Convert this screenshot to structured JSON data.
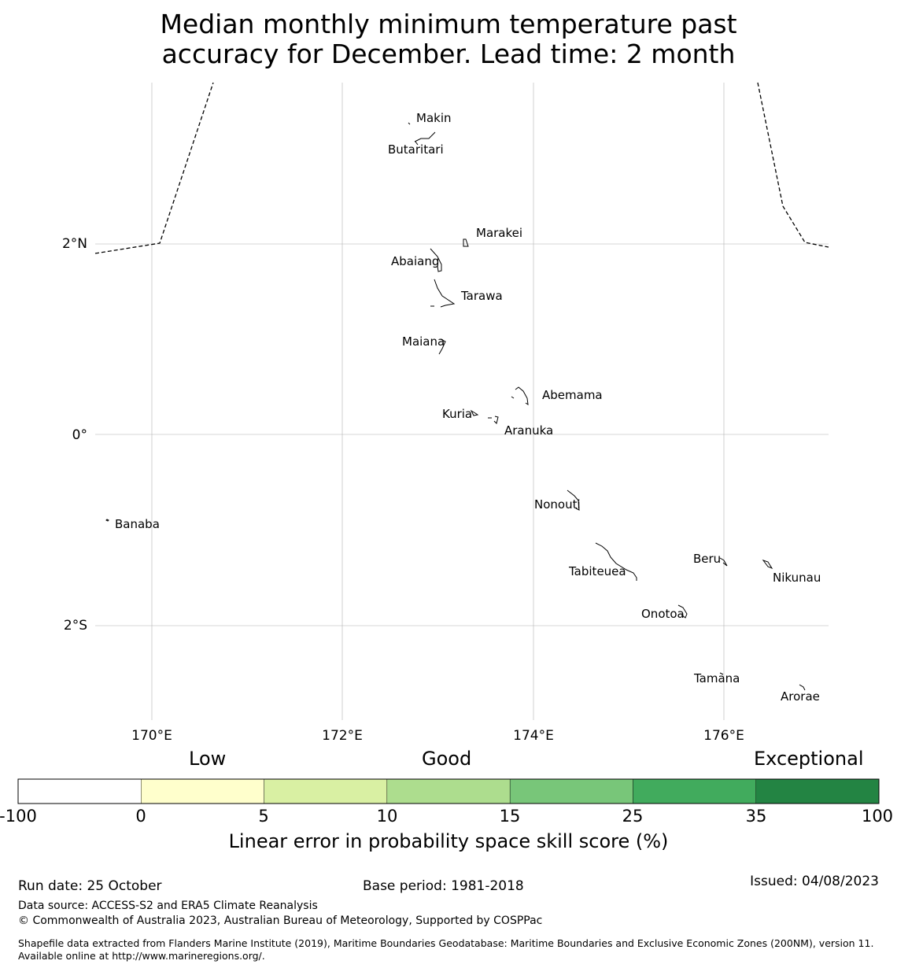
{
  "title": {
    "line1": "Median monthly minimum temperature past",
    "line2": "accuracy for December. Lead time: 2 month"
  },
  "map": {
    "lat_ticks": [
      "2°N",
      "0°",
      "2°S"
    ],
    "lon_ticks": [
      "170°E",
      "172°E",
      "174°E",
      "176°E"
    ],
    "islands": [
      "Makin",
      "Butaritari",
      "Marakei",
      "Abaiang",
      "Tarawa",
      "Maiana",
      "Abemama",
      "Kuria",
      "Aranuka",
      "Nonouti",
      "Banaba",
      "Beru",
      "Tabiteuea",
      "Nikunau",
      "Onotoa",
      "Tamana",
      "Arorae"
    ],
    "colors": {
      "grid": "#b0b0b0",
      "coast": "#000000",
      "boundary": "#000000"
    }
  },
  "legend": {
    "categories": [
      "Low",
      "Good",
      "Exceptional"
    ],
    "ticks": [
      "-100",
      "0",
      "5",
      "10",
      "15",
      "25",
      "35",
      "100"
    ],
    "colors": [
      "#ffffff",
      "#ffffcc",
      "#d9f0a3",
      "#addd8e",
      "#78c679",
      "#41ab5d",
      "#238443"
    ],
    "title": "Linear error in probability space skill score (%)"
  },
  "footer": {
    "run_date": "Run date: 25 October",
    "base_period": "Base period: 1981-2018",
    "issued": "Issued: 04/08/2023",
    "data_source": "Data source: ACCESS-S2 and ERA5 Climate Reanalysis",
    "copyright": "© Commonwealth of Australia 2023, Australian Bureau of Meteorology, Supported by COSPPac",
    "shapefile": "Shapefile data extracted from Flanders Marine Institute (2019), Maritime Boundaries Geodatabase: Maritime Boundaries and Exclusive Economic Zones (200NM), version 11. Available online at http://www.marineregions.org/."
  }
}
